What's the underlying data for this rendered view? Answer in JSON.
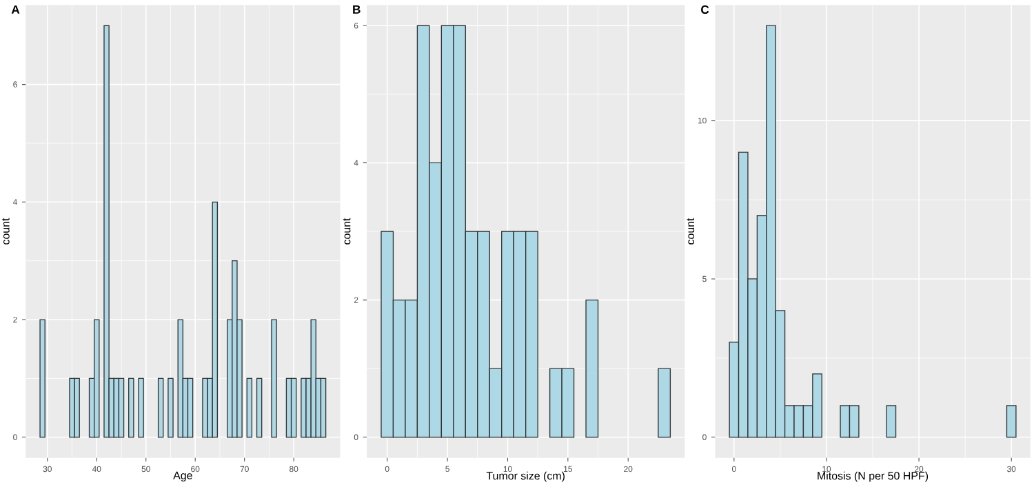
{
  "chart_data": [
    {
      "type": "histogram",
      "title": "A",
      "xlabel": "Age",
      "ylabel": "count",
      "color": "#add8e6",
      "grid": true,
      "bins": [
        28.5,
        29.5,
        30.5,
        31.5,
        32.5,
        33.5,
        34.5,
        35.5,
        36.5,
        37.5,
        38.5,
        39.5,
        40.5,
        41.5,
        42.5,
        43.5,
        44.5,
        45.5,
        46.5,
        47.5,
        48.5,
        49.5,
        50.5,
        51.5,
        52.5,
        53.5,
        54.5,
        55.5,
        56.5,
        57.5,
        58.5,
        59.5,
        60.5,
        61.5,
        62.5,
        63.5,
        64.5,
        65.5,
        66.5,
        67.5,
        68.5,
        69.5,
        70.5,
        71.5,
        72.5,
        73.5,
        74.5,
        75.5,
        76.5,
        77.5,
        78.5,
        79.5,
        80.5,
        81.5,
        82.5,
        83.5,
        84.5,
        85.5,
        86.5
      ],
      "values": [
        2,
        0,
        0,
        0,
        0,
        0,
        1,
        1,
        0,
        0,
        1,
        2,
        0,
        7,
        1,
        1,
        1,
        0,
        1,
        0,
        1,
        0,
        0,
        0,
        1,
        0,
        1,
        0,
        2,
        1,
        1,
        0,
        0,
        1,
        1,
        4,
        0,
        0,
        2,
        3,
        2,
        0,
        1,
        0,
        1,
        0,
        0,
        2,
        0,
        0,
        1,
        1,
        0,
        1,
        1,
        2,
        1,
        1
      ],
      "xlim": [
        25.6,
        89.4
      ],
      "ylim": [
        -0.35,
        7.35
      ],
      "xticks": [
        30,
        40,
        50,
        60,
        70,
        80
      ],
      "yticks": [
        0,
        2,
        4,
        6
      ]
    },
    {
      "type": "histogram",
      "title": "B",
      "xlabel": "Tumor size (cm)",
      "ylabel": "count",
      "color": "#add8e6",
      "grid": true,
      "bins": [
        -0.5,
        0.5,
        1.5,
        2.5,
        3.5,
        4.5,
        5.5,
        6.5,
        7.5,
        8.5,
        9.5,
        10.5,
        11.5,
        12.5,
        13.5,
        14.5,
        15.5,
        16.5,
        17.5,
        18.5,
        19.5,
        20.5,
        21.5,
        22.5,
        23.5
      ],
      "values": [
        3,
        2,
        2,
        6,
        4,
        6,
        6,
        3,
        3,
        1,
        3,
        3,
        3,
        0,
        1,
        1,
        0,
        2,
        0,
        0,
        0,
        0,
        0,
        1
      ],
      "xlim": [
        -1.7,
        24.7
      ],
      "ylim": [
        -0.3,
        6.3
      ],
      "xticks": [
        0,
        5,
        10,
        15,
        20
      ],
      "yticks": [
        0,
        2,
        4,
        6
      ]
    },
    {
      "type": "histogram",
      "title": "C",
      "xlabel": "Mitosis (N per 50 HPF)",
      "ylabel": "count",
      "color": "#add8e6",
      "grid": true,
      "bins": [
        -0.5,
        0.5,
        1.5,
        2.5,
        3.5,
        4.5,
        5.5,
        6.5,
        7.5,
        8.5,
        9.5,
        10.5,
        11.5,
        12.5,
        13.5,
        14.5,
        15.5,
        16.5,
        17.5,
        18.5,
        19.5,
        20.5,
        21.5,
        22.5,
        23.5,
        24.5,
        25.5,
        26.5,
        27.5,
        28.5,
        29.5,
        30.5
      ],
      "values": [
        3,
        9,
        5,
        7,
        13,
        4,
        1,
        1,
        1,
        2,
        0,
        0,
        1,
        1,
        0,
        0,
        0,
        1,
        0,
        0,
        0,
        0,
        0,
        0,
        0,
        0,
        0,
        0,
        0,
        0,
        1
      ],
      "xlim": [
        -2.05,
        32.05
      ],
      "ylim": [
        -0.65,
        13.65
      ],
      "xticks": [
        0,
        10,
        20,
        30
      ],
      "yticks": [
        0,
        5,
        10
      ]
    }
  ]
}
